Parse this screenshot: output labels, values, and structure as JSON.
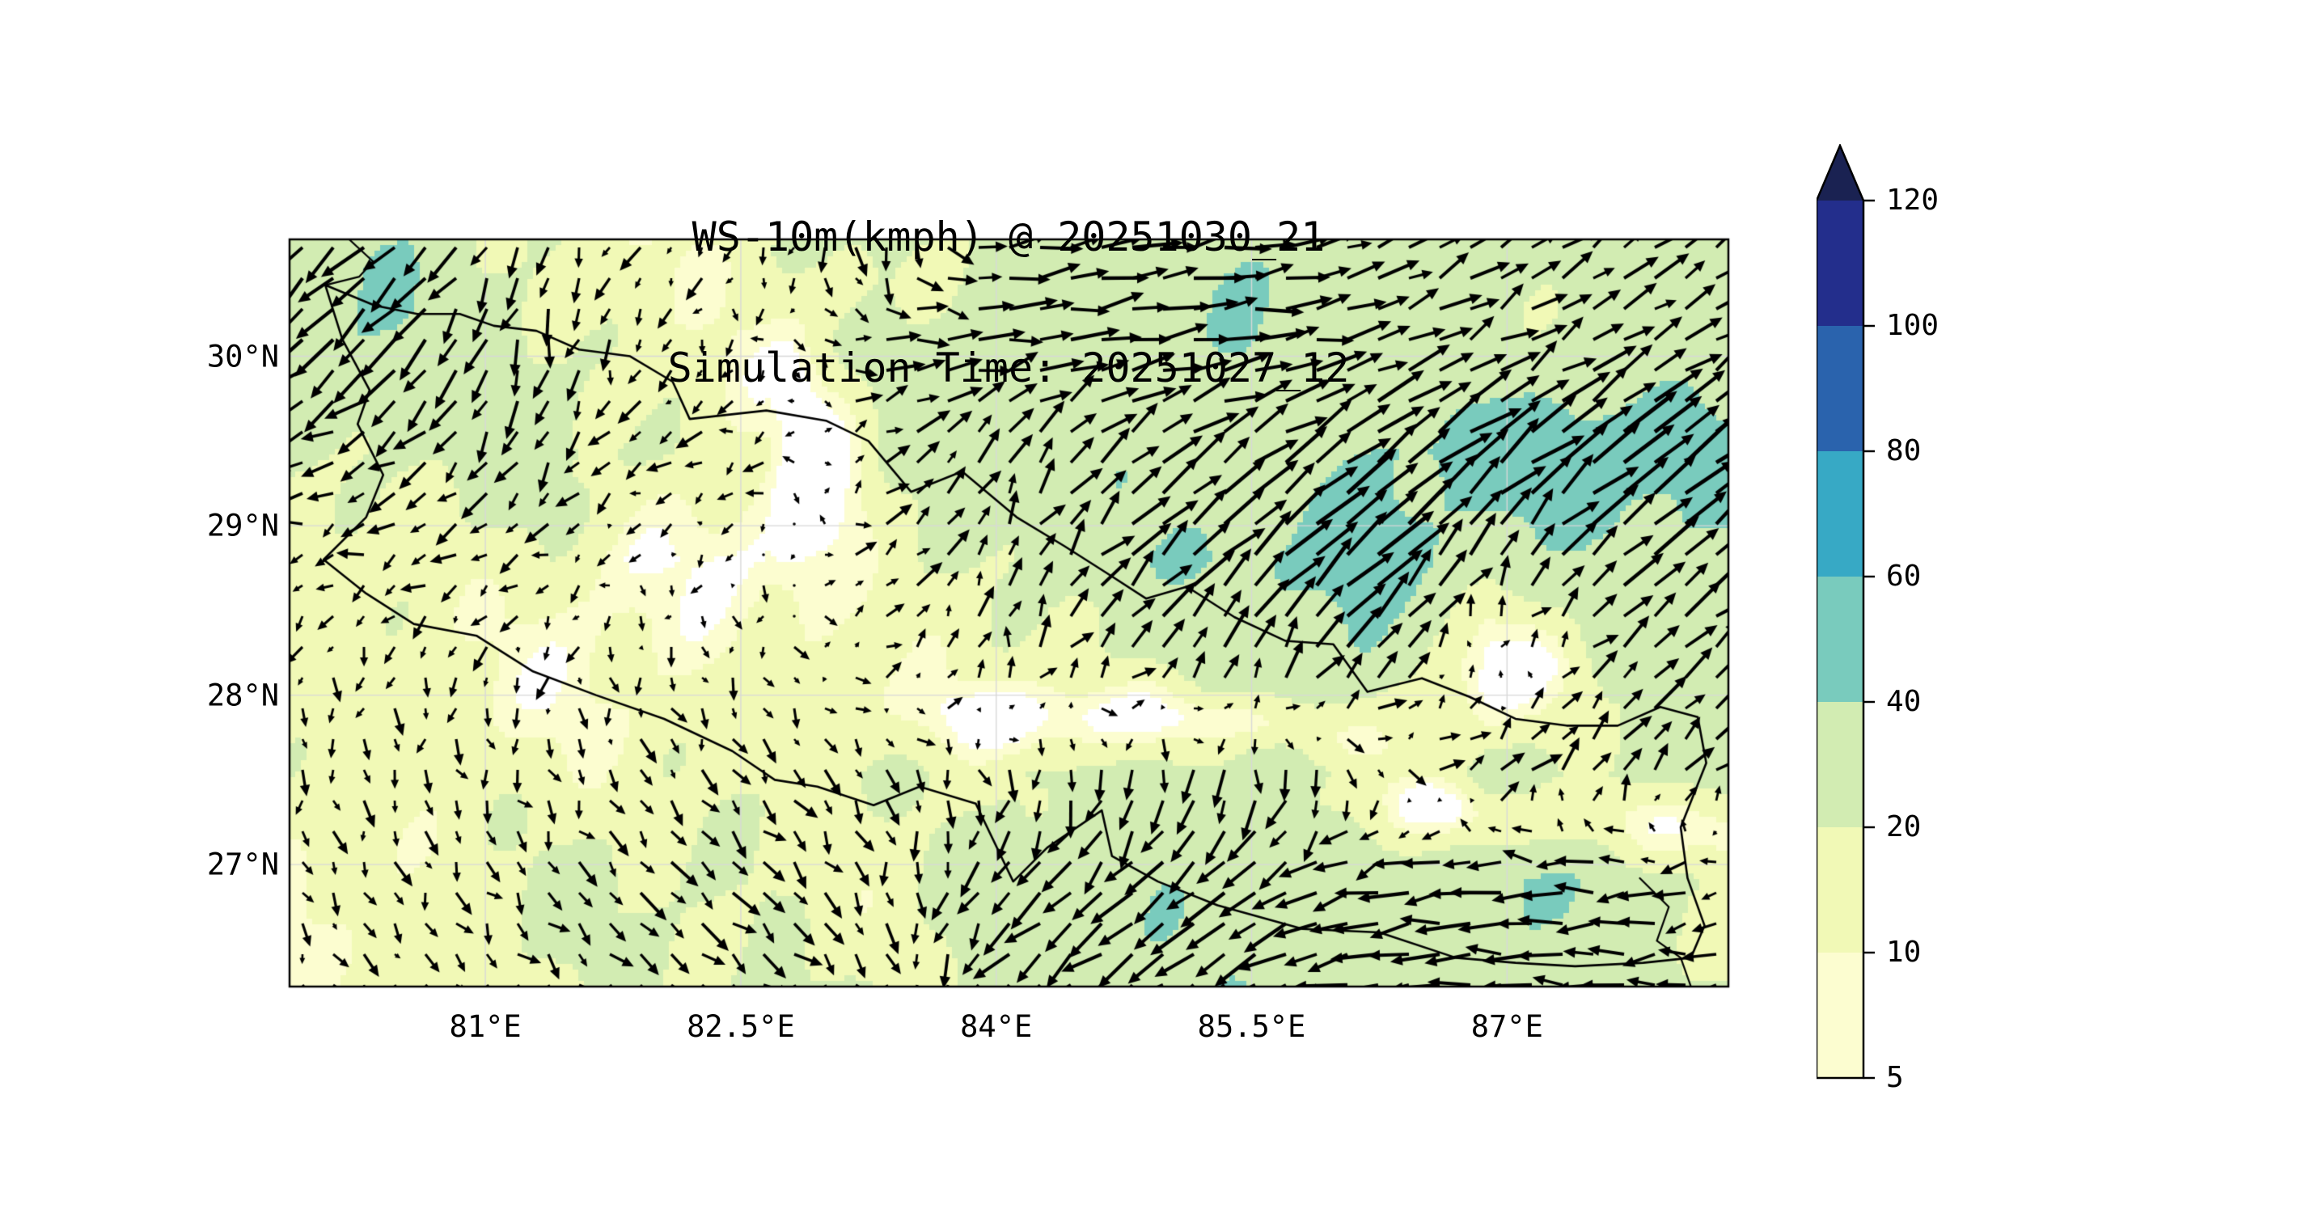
{
  "figure": {
    "background": "#ffffff",
    "foreground": "#000000"
  },
  "chart_data": {
    "type": "heatmap",
    "subtype": "quiver_contourf_weather_map",
    "title": "WS-10m(kmph) @ 20251030_21",
    "subtitle": "Simulation Time: 20251027_12",
    "variable": "10 m wind speed",
    "units": "kmph",
    "region": "Nepal",
    "lon_range": [
      79.85,
      88.3
    ],
    "lat_range": [
      26.28,
      30.69
    ],
    "x_ticks": [
      {
        "lon": 81.0,
        "label": "81°E"
      },
      {
        "lon": 82.5,
        "label": "82.5°E"
      },
      {
        "lon": 84.0,
        "label": "84°E"
      },
      {
        "lon": 85.5,
        "label": "85.5°E"
      },
      {
        "lon": 87.0,
        "label": "87°E"
      }
    ],
    "y_ticks": [
      {
        "lat": 30.0,
        "label": "30°N"
      },
      {
        "lat": 29.0,
        "label": "29°N"
      },
      {
        "lat": 28.0,
        "label": "28°N"
      },
      {
        "lat": 27.0,
        "label": "27°N"
      }
    ],
    "gridlines": {
      "lons": [
        81.0,
        82.5,
        84.0,
        85.5,
        87.0
      ],
      "lats": [
        27.0,
        28.0,
        29.0,
        30.0
      ],
      "color": "#d8d8d8"
    },
    "colorbar": {
      "levels": [
        5,
        10,
        20,
        40,
        60,
        80,
        100,
        120
      ],
      "tick_labels": [
        "5",
        "10",
        "20",
        "40",
        "60",
        "80",
        "100",
        "120"
      ],
      "colors": [
        "#fcfdd0",
        "#f1f9b6",
        "#d2ecb2",
        "#79cbbd",
        "#37a9c5",
        "#2a63ad",
        "#232e8c"
      ],
      "over_color": "#1a2252",
      "under_color": "#ffffff",
      "extend": "max"
    },
    "wind_grid": {
      "nx": 13,
      "ny": 8,
      "row_order": "north_to_south",
      "speed_kmph_per_unit": 11,
      "u": [
        [
          -2.2,
          -2.5,
          -0.5,
          -0.8,
          -0.3,
          0.0,
          2.8,
          3.0,
          3.2,
          2.4,
          2.2,
          2.0,
          2.2
        ],
        [
          -2.6,
          -2.2,
          -0.4,
          -0.5,
          -0.3,
          2.6,
          2.9,
          3.0,
          3.3,
          2.6,
          2.3,
          2.1,
          2.3
        ],
        [
          -2.2,
          -1.8,
          -1.0,
          -1.5,
          -1.2,
          1.6,
          1.2,
          2.2,
          2.6,
          3.0,
          3.4,
          3.6,
          3.4
        ],
        [
          -1.2,
          -1.4,
          -1.3,
          -0.2,
          -0.2,
          1.4,
          0.6,
          2.4,
          2.8,
          3.6,
          1.2,
          2.4,
          2.6
        ],
        [
          -0.3,
          -0.3,
          -0.4,
          0.2,
          0.3,
          0.8,
          0.4,
          1.4,
          0.9,
          2.0,
          -0.6,
          1.6,
          2.0
        ],
        [
          0.2,
          0.3,
          0.3,
          0.8,
          0.9,
          0.7,
          0.2,
          -0.4,
          -0.4,
          0.6,
          2.0,
          1.2,
          1.8
        ],
        [
          0.5,
          0.6,
          0.8,
          1.3,
          1.5,
          0.4,
          -1.8,
          -2.4,
          -2.6,
          -3.0,
          -3.3,
          -2.8,
          -1.6
        ],
        [
          0.8,
          0.9,
          1.1,
          1.4,
          1.6,
          0.8,
          -2.0,
          -2.6,
          -2.8,
          -3.2,
          -3.4,
          -2.6,
          -2.0
        ]
      ],
      "v": [
        [
          -2.2,
          -2.0,
          -2.0,
          -0.8,
          -1.0,
          -2.4,
          0.6,
          0.5,
          0.3,
          1.2,
          1.4,
          1.5,
          1.6
        ],
        [
          -2.4,
          -2.6,
          -2.4,
          -1.2,
          -0.6,
          0.3,
          0.3,
          0.4,
          0.4,
          0.9,
          1.1,
          1.3,
          1.4
        ],
        [
          -0.6,
          -1.4,
          -1.8,
          -0.8,
          -0.5,
          1.1,
          2.2,
          1.8,
          2.0,
          2.3,
          2.6,
          2.8,
          2.7
        ],
        [
          -0.4,
          -0.7,
          -0.6,
          -0.5,
          -0.4,
          1.0,
          1.6,
          2.2,
          2.6,
          3.0,
          2.4,
          2.0,
          2.2
        ],
        [
          -1.1,
          -1.2,
          -1.1,
          -1.0,
          -0.9,
          0.7,
          1.7,
          1.6,
          2.5,
          2.4,
          0.15,
          1.5,
          1.9
        ],
        [
          -1.2,
          -1.3,
          -1.3,
          -1.2,
          -1.3,
          -1.5,
          -1.8,
          -2.2,
          -2.6,
          -1.4,
          1.4,
          1.8,
          1.4
        ],
        [
          -1.1,
          -1.2,
          -1.2,
          -1.3,
          -1.4,
          -1.6,
          -1.9,
          -2.1,
          -1.9,
          -0.6,
          -0.3,
          -0.1,
          -0.8
        ],
        [
          -0.9,
          -1.0,
          -1.1,
          -1.2,
          -1.3,
          -1.5,
          -2.0,
          -2.0,
          -1.8,
          -0.5,
          -0.2,
          0.2,
          -0.2
        ]
      ]
    },
    "quiver": {
      "cols": 47,
      "rows": 25,
      "arrow_color": "#000000"
    },
    "borders": {
      "color": "#000000",
      "nepal_outline": [
        [
          80.06,
          30.42
        ],
        [
          80.35,
          30.3
        ],
        [
          80.6,
          30.25
        ],
        [
          80.85,
          30.25
        ],
        [
          81.05,
          30.18
        ],
        [
          81.3,
          30.15
        ],
        [
          81.55,
          30.04
        ],
        [
          81.85,
          30.0
        ],
        [
          82.1,
          29.85
        ],
        [
          82.2,
          29.63
        ],
        [
          82.65,
          29.68
        ],
        [
          83.0,
          29.62
        ],
        [
          83.25,
          29.5
        ],
        [
          83.5,
          29.2
        ],
        [
          83.8,
          29.32
        ],
        [
          84.12,
          29.05
        ],
        [
          84.4,
          28.88
        ],
        [
          84.65,
          28.72
        ],
        [
          84.88,
          28.57
        ],
        [
          85.12,
          28.64
        ],
        [
          85.4,
          28.46
        ],
        [
          85.7,
          28.32
        ],
        [
          85.98,
          28.3
        ],
        [
          86.18,
          28.02
        ],
        [
          86.5,
          28.1
        ],
        [
          86.78,
          27.99
        ],
        [
          87.05,
          27.86
        ],
        [
          87.35,
          27.82
        ],
        [
          87.65,
          27.82
        ],
        [
          87.9,
          27.93
        ],
        [
          88.12,
          27.87
        ],
        [
          88.17,
          27.6
        ],
        [
          88.02,
          27.22
        ],
        [
          88.06,
          26.92
        ],
        [
          88.16,
          26.64
        ],
        [
          88.08,
          26.45
        ],
        [
          87.8,
          26.42
        ],
        [
          87.4,
          26.4
        ],
        [
          87.05,
          26.42
        ],
        [
          86.7,
          26.45
        ],
        [
          86.25,
          26.6
        ],
        [
          85.8,
          26.62
        ],
        [
          85.3,
          26.76
        ],
        [
          84.95,
          26.9
        ],
        [
          84.68,
          27.05
        ],
        [
          84.62,
          27.32
        ],
        [
          84.3,
          27.1
        ],
        [
          84.1,
          26.9
        ],
        [
          83.88,
          27.36
        ],
        [
          83.55,
          27.46
        ],
        [
          83.28,
          27.35
        ],
        [
          82.95,
          27.46
        ],
        [
          82.7,
          27.5
        ],
        [
          82.45,
          27.67
        ],
        [
          82.05,
          27.86
        ],
        [
          81.65,
          28.0
        ],
        [
          81.28,
          28.14
        ],
        [
          80.95,
          28.35
        ],
        [
          80.58,
          28.42
        ],
        [
          80.3,
          28.6
        ],
        [
          80.05,
          28.8
        ],
        [
          80.3,
          29.05
        ],
        [
          80.4,
          29.3
        ],
        [
          80.25,
          29.6
        ],
        [
          80.32,
          29.8
        ],
        [
          80.16,
          30.1
        ],
        [
          80.06,
          30.42
        ]
      ],
      "extra_segments": [
        [
          [
            80.2,
            30.69
          ],
          [
            80.34,
            30.56
          ],
          [
            80.26,
            30.47
          ],
          [
            80.06,
            30.42
          ]
        ],
        [
          [
            87.78,
            26.92
          ],
          [
            87.95,
            26.75
          ],
          [
            87.88,
            26.55
          ],
          [
            88.02,
            26.45
          ],
          [
            88.08,
            26.28
          ]
        ]
      ]
    }
  }
}
